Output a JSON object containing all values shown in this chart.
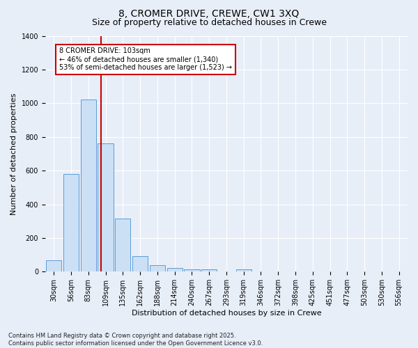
{
  "title_line1": "8, CROMER DRIVE, CREWE, CW1 3XQ",
  "title_line2": "Size of property relative to detached houses in Crewe",
  "xlabel": "Distribution of detached houses by size in Crewe",
  "ylabel": "Number of detached properties",
  "categories": [
    "30sqm",
    "56sqm",
    "83sqm",
    "109sqm",
    "135sqm",
    "162sqm",
    "188sqm",
    "214sqm",
    "240sqm",
    "267sqm",
    "293sqm",
    "319sqm",
    "346sqm",
    "372sqm",
    "398sqm",
    "425sqm",
    "451sqm",
    "477sqm",
    "503sqm",
    "530sqm",
    "556sqm"
  ],
  "values": [
    68,
    580,
    1020,
    760,
    315,
    92,
    38,
    22,
    15,
    12,
    0,
    15,
    0,
    0,
    0,
    0,
    0,
    0,
    0,
    0,
    0
  ],
  "bar_color": "#cce0f5",
  "bar_edge_color": "#5b9bd5",
  "vline_color": "#cc0000",
  "vline_x_index": 2.72,
  "annotation_text": "8 CROMER DRIVE: 103sqm\n← 46% of detached houses are smaller (1,340)\n53% of semi-detached houses are larger (1,523) →",
  "annotation_box_facecolor": "#ffffff",
  "annotation_box_edgecolor": "#cc0000",
  "ylim": [
    0,
    1400
  ],
  "yticks": [
    0,
    200,
    400,
    600,
    800,
    1000,
    1200,
    1400
  ],
  "bg_color": "#e8eef8",
  "plot_bg_color": "#e8eef8",
  "footer_text": "Contains HM Land Registry data © Crown copyright and database right 2025.\nContains public sector information licensed under the Open Government Licence v3.0.",
  "title_fontsize": 10,
  "subtitle_fontsize": 9,
  "axis_label_fontsize": 8,
  "tick_fontsize": 7,
  "annotation_fontsize": 7,
  "footer_fontsize": 6
}
